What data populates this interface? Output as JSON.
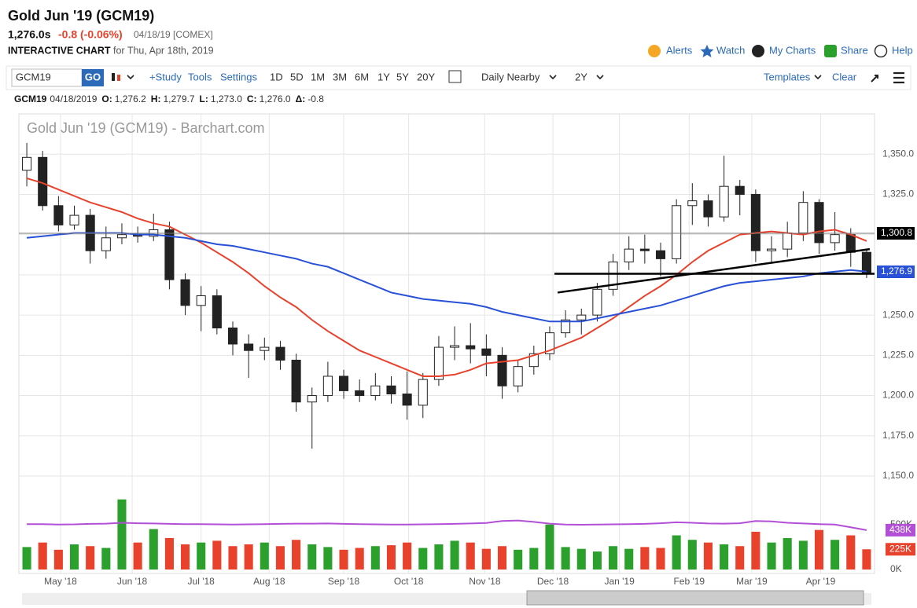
{
  "header": {
    "title": "Gold Jun '19 (GCM19)",
    "last": "1,276.0s",
    "change": "-0.8 (-0.06%)",
    "stamp": "04/18/19 [COMEX]",
    "chart_label": "INTERACTIVE CHART",
    "chart_date": "for Thu, Apr 18th, 2019",
    "links": [
      "Alerts",
      "Watch",
      "My Charts",
      "Share",
      "Help"
    ]
  },
  "toolbar": {
    "symbol": "GCM19",
    "go": "GO",
    "items": [
      "+Study",
      "Tools",
      "Settings"
    ],
    "periods": [
      "1D",
      "5D",
      "1M",
      "3M",
      "6M",
      "1Y",
      "5Y",
      "20Y"
    ],
    "mode": "Daily Nearby",
    "range": "2Y",
    "templates": "Templates",
    "clear": "Clear"
  },
  "quote_bar": {
    "symbol": "GCM19",
    "date": "04/18/2019",
    "fields": [
      {
        "label": "O:",
        "value": "1,276.2"
      },
      {
        "label": "H:",
        "value": "1,279.7"
      },
      {
        "label": "L:",
        "value": "1,273.0"
      },
      {
        "label": "C:",
        "value": "1,276.0"
      },
      {
        "label": "Δ:",
        "value": "-0.8"
      }
    ]
  },
  "chart_data": {
    "type": "candlestick",
    "title": "Gold Jun '19 (GCM19) - Barchart.com",
    "up_color": "#2ca02c",
    "down_color": "#e8412c",
    "grid": true,
    "xlim": [
      -0.5,
      53.5
    ],
    "xticks": [
      {
        "value": 2.13,
        "label": "May '18"
      },
      {
        "value": 6.65,
        "label": "Jun '18"
      },
      {
        "value": 11.0,
        "label": "Jul '18"
      },
      {
        "value": 15.3,
        "label": "Aug '18"
      },
      {
        "value": 20.0,
        "label": "Sep '18"
      },
      {
        "value": 24.1,
        "label": "Oct '18"
      },
      {
        "value": 28.9,
        "label": "Nov '18"
      },
      {
        "value": 33.2,
        "label": "Dec '18"
      },
      {
        "value": 37.4,
        "label": "Jan '19"
      },
      {
        "value": 41.8,
        "label": "Feb '19"
      },
      {
        "value": 45.75,
        "label": "Mar '19"
      },
      {
        "value": 50.1,
        "label": "Apr '19"
      }
    ],
    "ylim": [
      1150,
      1375
    ],
    "yticks": [
      {
        "value": 1150,
        "label": "1,150.0"
      },
      {
        "value": 1175,
        "label": "1,175.0"
      },
      {
        "value": 1200,
        "label": "1,200.0"
      },
      {
        "value": 1225,
        "label": "1,225.0"
      },
      {
        "value": 1250,
        "label": "1,250.0"
      },
      {
        "value": 1275,
        "label": "1,275.0"
      },
      {
        "value": 1300,
        "label": "1,300.0"
      },
      {
        "value": 1325,
        "label": "1,325.0"
      },
      {
        "value": 1350,
        "label": "1,350.0"
      }
    ],
    "open": [
      1340,
      1348,
      1318,
      1306,
      1312,
      1290,
      1298,
      1300,
      1299,
      1303,
      1272,
      1256,
      1262,
      1242,
      1232,
      1228,
      1230,
      1222,
      1196,
      1200,
      1212,
      1203,
      1200,
      1206,
      1201,
      1194,
      1210,
      1230,
      1231,
      1229,
      1225,
      1206,
      1218,
      1226,
      1239,
      1247,
      1250,
      1266,
      1283,
      1291,
      1290,
      1285,
      1318,
      1321,
      1311,
      1330,
      1325,
      1290,
      1291,
      1301,
      1320,
      1295,
      1300,
      1289
    ],
    "high": [
      1357,
      1352,
      1324,
      1318,
      1316,
      1305,
      1307,
      1305,
      1313,
      1308,
      1276,
      1268,
      1266,
      1246,
      1238,
      1236,
      1234,
      1226,
      1205,
      1221,
      1216,
      1210,
      1214,
      1212,
      1215,
      1214,
      1237,
      1243,
      1245,
      1238,
      1230,
      1222,
      1231,
      1243,
      1253,
      1254,
      1270,
      1288,
      1299,
      1300,
      1295,
      1322,
      1332,
      1325,
      1349,
      1334,
      1328,
      1299,
      1308,
      1327,
      1322,
      1314,
      1304,
      1291
    ],
    "low": [
      1330,
      1315,
      1302,
      1303,
      1282,
      1285,
      1294,
      1295,
      1296,
      1266,
      1250,
      1240,
      1238,
      1225,
      1211,
      1222,
      1216,
      1190,
      1167,
      1196,
      1198,
      1196,
      1197,
      1195,
      1185,
      1186,
      1206,
      1222,
      1220,
      1212,
      1198,
      1202,
      1213,
      1222,
      1236,
      1238,
      1246,
      1262,
      1278,
      1282,
      1274,
      1282,
      1306,
      1305,
      1308,
      1312,
      1283,
      1282,
      1286,
      1296,
      1288,
      1290,
      1280,
      1273
    ],
    "close": [
      1348,
      1318,
      1306,
      1312,
      1290,
      1298,
      1300,
      1299,
      1303,
      1272,
      1256,
      1262,
      1242,
      1232,
      1228,
      1230,
      1222,
      1196,
      1200,
      1212,
      1203,
      1200,
      1206,
      1201,
      1194,
      1210,
      1230,
      1231,
      1229,
      1225,
      1206,
      1218,
      1226,
      1239,
      1247,
      1250,
      1266,
      1283,
      1291,
      1290,
      1285,
      1318,
      1321,
      1311,
      1330,
      1325,
      1290,
      1291,
      1301,
      1320,
      1295,
      1300,
      1289,
      1276
    ],
    "series": [
      {
        "color": "#e8412c",
        "values": [
          1335,
          1332,
          1328,
          1324,
          1320,
          1317,
          1314,
          1310,
          1307,
          1305,
          1300,
          1295,
          1289,
          1283,
          1276,
          1268,
          1261,
          1255,
          1247,
          1240,
          1234,
          1228,
          1224,
          1220,
          1216,
          1212,
          1212,
          1213,
          1216,
          1220,
          1221,
          1222,
          1225,
          1228,
          1232,
          1236,
          1242,
          1248,
          1255,
          1262,
          1268,
          1275,
          1283,
          1290,
          1295,
          1300,
          1301,
          1302,
          1301,
          1300,
          1302,
          1303,
          1300,
          1296
        ]
      },
      {
        "color": "#2851d8",
        "values": [
          1298,
          1299,
          1300,
          1301,
          1301,
          1301,
          1301,
          1300,
          1300,
          1299,
          1298,
          1296,
          1294,
          1293,
          1291,
          1289,
          1287,
          1285,
          1282,
          1280,
          1276,
          1272,
          1268,
          1264,
          1262,
          1260,
          1259,
          1258,
          1257,
          1255,
          1252,
          1250,
          1248,
          1246,
          1246,
          1246,
          1248,
          1250,
          1252,
          1254,
          1256,
          1259,
          1262,
          1265,
          1268,
          1270,
          1271,
          1272,
          1273,
          1274,
          1276,
          1277,
          1278,
          1277
        ]
      }
    ],
    "price_lines": [
      {
        "value": 1300.8,
        "label": "1,300.8",
        "color": "#000000"
      },
      {
        "value": 1276.9,
        "label": "1,276.9",
        "color": "#2851d8"
      }
    ],
    "trend_lines": [
      {
        "x": [
          33.3,
          53.5
        ],
        "y": [
          1275.7,
          1275.7
        ]
      },
      {
        "x": [
          33.5,
          53.2
        ],
        "y": [
          1264,
          1291
        ]
      }
    ],
    "volume": {
      "ylim": [
        0,
        1040
      ],
      "yticks": [
        {
          "value": 0,
          "label": "0K"
        },
        {
          "value": 500,
          "label": "500K"
        }
      ],
      "values": [
        250,
        300,
        220,
        280,
        260,
        240,
        780,
        300,
        450,
        350,
        280,
        300,
        320,
        260,
        280,
        300,
        260,
        330,
        280,
        250,
        220,
        240,
        260,
        270,
        300,
        240,
        280,
        320,
        300,
        230,
        260,
        220,
        240,
        500,
        250,
        230,
        200,
        260,
        230,
        250,
        240,
        380,
        330,
        300,
        280,
        260,
        420,
        300,
        350,
        320,
        440,
        330,
        380,
        225
      ],
      "average": {
        "color": "#b24fd6",
        "values": [
          505,
          505,
          500,
          502,
          508,
          510,
          520,
          515,
          512,
          508,
          505,
          505,
          503,
          500,
          502,
          505,
          508,
          510,
          510,
          512,
          508,
          505,
          503,
          500,
          500,
          502,
          505,
          508,
          512,
          518,
          540,
          545,
          530,
          510,
          500,
          498,
          500,
          502,
          505,
          508,
          515,
          525,
          520,
          512,
          510,
          515,
          540,
          535,
          520,
          512,
          505,
          500,
          470,
          438
        ]
      },
      "badges": [
        {
          "value": 438,
          "label": "438K",
          "color": "#b24fd6"
        },
        {
          "value": 225,
          "label": "225K",
          "color": "#e8412c"
        }
      ]
    }
  }
}
